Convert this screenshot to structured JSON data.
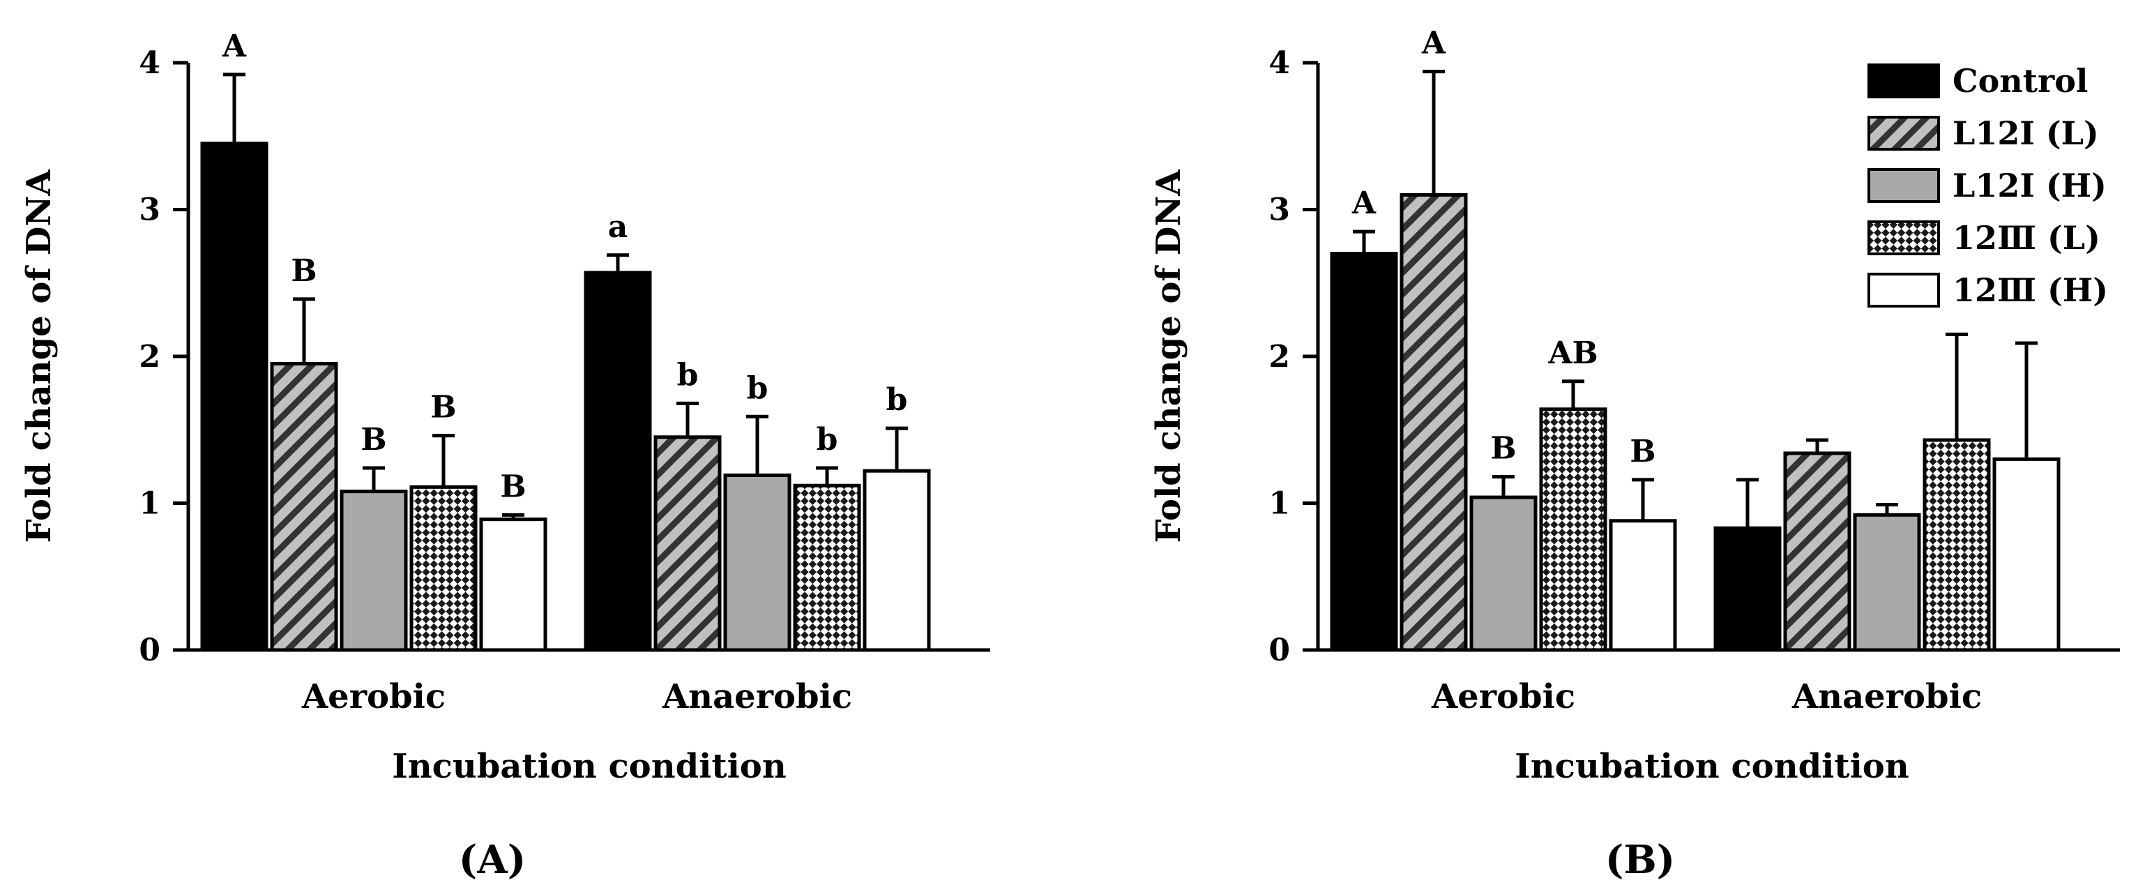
{
  "chart_data": [
    {
      "type": "bar",
      "panel_label": "A",
      "xlabel": "Incubation condition",
      "ylabel": "Fold change of DNA",
      "ylim": [
        0,
        4
      ],
      "yticks": [
        "0",
        "1",
        "2",
        "3",
        "4"
      ],
      "categories": [
        "Aerobic",
        "Anaerobic"
      ],
      "series": [
        {
          "name": "Control",
          "values": [
            3.45,
            2.57
          ],
          "errors": [
            0.47,
            0.12
          ],
          "letters": [
            "A",
            "a"
          ]
        },
        {
          "name": "L12Ⅰ (L)",
          "values": [
            1.95,
            1.45
          ],
          "errors": [
            0.44,
            0.23
          ],
          "letters": [
            "B",
            "b"
          ]
        },
        {
          "name": "L12Ⅰ (H)",
          "values": [
            1.08,
            1.19
          ],
          "errors": [
            0.16,
            0.4
          ],
          "letters": [
            "B",
            "b"
          ]
        },
        {
          "name": "12Ⅲ (L)",
          "values": [
            1.11,
            1.12
          ],
          "errors": [
            0.35,
            0.12
          ],
          "letters": [
            "B",
            "b"
          ]
        },
        {
          "name": "12Ⅲ (H)",
          "values": [
            0.89,
            1.22
          ],
          "errors": [
            0.03,
            0.29
          ],
          "letters": [
            "B",
            "b"
          ]
        }
      ]
    },
    {
      "type": "bar",
      "panel_label": "B",
      "xlabel": "Incubation condition",
      "ylabel": "Fold change of DNA",
      "ylim": [
        0,
        4
      ],
      "yticks": [
        "0",
        "1",
        "2",
        "3",
        "4"
      ],
      "categories": [
        "Aerobic",
        "Anaerobic"
      ],
      "legend_position": "top-right",
      "series": [
        {
          "name": "Control",
          "values": [
            2.7,
            0.83
          ],
          "errors": [
            0.15,
            0.33
          ],
          "letters": [
            "A",
            ""
          ]
        },
        {
          "name": "L12Ⅰ (L)",
          "values": [
            3.1,
            1.34
          ],
          "errors": [
            0.84,
            0.09
          ],
          "letters": [
            "A",
            ""
          ]
        },
        {
          "name": "L12Ⅰ (H)",
          "values": [
            1.04,
            0.92
          ],
          "errors": [
            0.14,
            0.07
          ],
          "letters": [
            "B",
            ""
          ]
        },
        {
          "name": "12Ⅲ (L)",
          "values": [
            1.64,
            1.43
          ],
          "errors": [
            0.19,
            0.72
          ],
          "letters": [
            "AB",
            ""
          ]
        },
        {
          "name": "12Ⅲ (H)",
          "values": [
            0.88,
            1.3
          ],
          "errors": [
            0.28,
            0.79
          ],
          "letters": [
            "B",
            ""
          ]
        }
      ]
    }
  ],
  "legend": {
    "items": [
      "Control",
      "L12Ⅰ (L)",
      "L12Ⅰ (H)",
      "12Ⅲ (L)",
      "12Ⅲ (H)"
    ]
  },
  "colors": {
    "control": "#000000",
    "light_gray": "#a9a9a9",
    "white": "#ffffff",
    "stroke": "#000000"
  }
}
